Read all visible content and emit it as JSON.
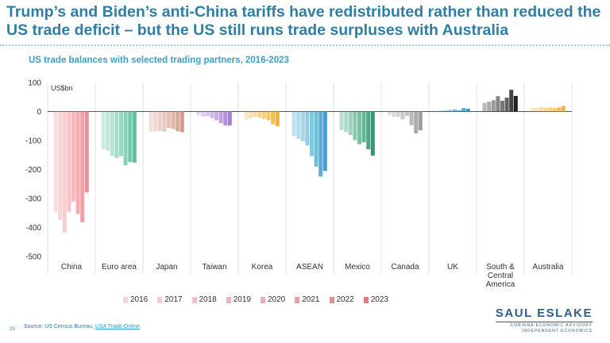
{
  "page": {
    "title": "Trump’s and Biden’s anti-China tariffs have redistributed rather than reduced the US trade deficit – but the US still runs trade surpluses with Australia",
    "source_prefix": "Source: US Census Bureau,",
    "source_link": "USA Trade Online",
    "source_suffix": ".",
    "page_number": "23",
    "logo": {
      "name": "SAUL ESLAKE",
      "line1": "CORINNA ECONOMIC ADVISORY",
      "line2": "INDEPENDENT ECONOMICS"
    }
  },
  "chart_data": {
    "type": "bar",
    "title": "US trade balances with selected trading partners, 2016-2023",
    "ylabel": "US$bn",
    "ylim": [
      -500,
      100
    ],
    "yticks": [
      100,
      0,
      -100,
      -200,
      -300,
      -400,
      -500
    ],
    "categories": [
      "China",
      "Euro area",
      "Japan",
      "Taiwan",
      "Korea",
      "ASEAN",
      "Mexico",
      "Canada",
      "UK",
      "South & Central America",
      "Australia"
    ],
    "category_lines": [
      [
        "China"
      ],
      [
        "Euro area"
      ],
      [
        "Japan"
      ],
      [
        "Taiwan"
      ],
      [
        "Korea"
      ],
      [
        "ASEAN"
      ],
      [
        "Mexico"
      ],
      [
        "Canada"
      ],
      [
        "UK"
      ],
      [
        "South &",
        "Central",
        "America"
      ],
      [
        "Australia"
      ]
    ],
    "years": [
      "2016",
      "2017",
      "2018",
      "2019",
      "2020",
      "2021",
      "2022",
      "2023"
    ],
    "category_colors": [
      "#f28e96",
      "#5cc0a0",
      "#d49a8a",
      "#a77fd6",
      "#f5b333",
      "#38a3cc",
      "#2e9a6f",
      "#9e9e9e",
      "#3399cc",
      "#222222",
      "#f5b333"
    ],
    "values": [
      [
        -347,
        -375,
        -418,
        -345,
        -310,
        -353,
        -382,
        -279
      ],
      [
        -130,
        -135,
        -152,
        -160,
        -154,
        -186,
        -174,
        -176
      ],
      [
        -69,
        -69,
        -67,
        -69,
        -56,
        -60,
        -68,
        -71
      ],
      [
        -13,
        -17,
        -15,
        -23,
        -30,
        -40,
        -48,
        -48
      ],
      [
        -28,
        -23,
        -18,
        -21,
        -25,
        -30,
        -44,
        -51
      ],
      [
        -85,
        -95,
        -103,
        -117,
        -154,
        -190,
        -224,
        -205
      ],
      [
        -63,
        -71,
        -81,
        -99,
        -113,
        -106,
        -130,
        -152
      ],
      [
        -12,
        -18,
        -19,
        -27,
        -15,
        -47,
        -76,
        -65
      ],
      [
        2,
        3,
        5,
        6,
        8,
        5,
        12,
        10
      ],
      [
        30,
        34,
        39,
        53,
        37,
        48,
        75,
        54
      ],
      [
        13,
        14,
        15,
        14,
        14,
        12,
        14,
        19
      ]
    ],
    "legend": [
      "2016",
      "2017",
      "2018",
      "2019",
      "2020",
      "2021",
      "2022",
      "2023"
    ],
    "legend_placement": "bottom",
    "grid": false
  }
}
